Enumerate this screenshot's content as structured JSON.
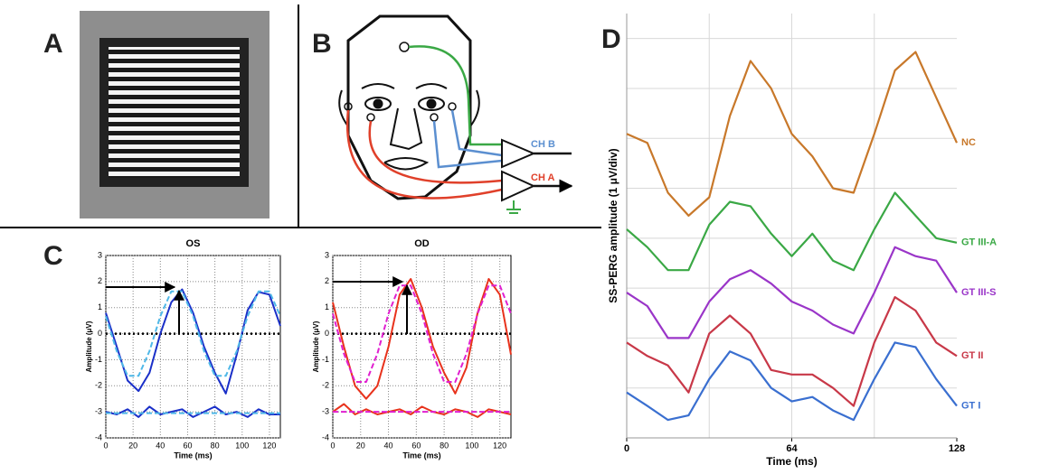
{
  "panel_labels": {
    "a": "A",
    "b": "B",
    "c": "C",
    "d": "D"
  },
  "diagram": {
    "ch_b": "CH B",
    "ch_a": "CH A"
  },
  "chart_data": [
    {
      "type": "line",
      "title": "OS",
      "x_label": "Time (ms)",
      "y_label": "Amplitude (μV)",
      "x": [
        0,
        8,
        16,
        24,
        32,
        40,
        48,
        56,
        64,
        72,
        80,
        88,
        96,
        104,
        112,
        120,
        128
      ],
      "xlim": [
        0,
        128
      ],
      "xticks": [
        0,
        20,
        40,
        60,
        80,
        100,
        120
      ],
      "ylim": [
        -4,
        3
      ],
      "yticks": [
        -4,
        -3,
        -2,
        -1,
        0,
        1,
        2,
        3
      ],
      "grid": true,
      "reference_line": 0,
      "series": [
        {
          "color": "#1a2fc8",
          "dash": false,
          "values": [
            0.8,
            -0.5,
            -1.8,
            -2.2,
            -1.5,
            0,
            1.2,
            1.7,
            0.8,
            -0.5,
            -1.5,
            -2.3,
            -0.8,
            0.9,
            1.6,
            1.5,
            0.3
          ]
        },
        {
          "color": "#4fb8e8",
          "dash": true,
          "values": [
            0.67,
            -0.67,
            -1.62,
            -1.62,
            -0.67,
            0.67,
            1.62,
            1.62,
            0.67,
            -0.67,
            -1.62,
            -1.62,
            -0.67,
            0.67,
            1.62,
            1.62,
            0.67
          ]
        },
        {
          "color": "#1a2fc8",
          "dash": false,
          "values": [
            -3.0,
            -3.1,
            -2.9,
            -3.2,
            -2.8,
            -3.1,
            -3.0,
            -2.9,
            -3.2,
            -3.0,
            -2.8,
            -3.1,
            -3.0,
            -3.2,
            -2.9,
            -3.1,
            -3.1
          ]
        },
        {
          "color": "#4fb8e8",
          "dash": true,
          "values": [
            -3.05,
            -3.05,
            -3.05,
            -3.05,
            -3.05,
            -3.05,
            -3.05,
            -3.05,
            -3.05,
            -3.05,
            -3.05,
            -3.05,
            -3.05,
            -3.05,
            -3.05,
            -3.05,
            -3.05
          ]
        }
      ]
    },
    {
      "type": "line",
      "title": "OD",
      "x_label": "Time (ms)",
      "y_label": "Amplitude (μV)",
      "x": [
        0,
        8,
        16,
        24,
        32,
        40,
        48,
        56,
        64,
        72,
        80,
        88,
        96,
        104,
        112,
        120,
        128
      ],
      "xlim": [
        0,
        128
      ],
      "xticks": [
        0,
        20,
        40,
        60,
        80,
        100,
        120
      ],
      "ylim": [
        -4,
        3
      ],
      "yticks": [
        -4,
        -3,
        -2,
        -1,
        0,
        1,
        2,
        3
      ],
      "grid": true,
      "reference_line": 0,
      "series": [
        {
          "color": "#e8321c",
          "dash": false,
          "values": [
            1.2,
            -0.5,
            -2.0,
            -2.5,
            -2.0,
            -0.5,
            1.5,
            2.1,
            1.0,
            -0.5,
            -1.5,
            -2.3,
            -1.3,
            0.8,
            2.1,
            1.5,
            -0.8
          ]
        },
        {
          "color": "#e020d0",
          "dash": true,
          "values": [
            0.77,
            -0.77,
            -1.85,
            -1.85,
            -0.77,
            0.77,
            1.85,
            1.85,
            0.77,
            -0.77,
            -1.85,
            -1.85,
            -0.77,
            0.77,
            1.85,
            1.85,
            0.77
          ]
        },
        {
          "color": "#e8321c",
          "dash": false,
          "values": [
            -3.0,
            -2.7,
            -3.1,
            -2.9,
            -3.1,
            -3.0,
            -2.9,
            -3.1,
            -2.8,
            -3.0,
            -3.1,
            -2.9,
            -3.0,
            -3.2,
            -2.9,
            -3.0,
            -3.1
          ]
        },
        {
          "color": "#e020d0",
          "dash": true,
          "values": [
            -3.0,
            -3.0,
            -3.0,
            -3.0,
            -3.0,
            -3.0,
            -3.0,
            -3.0,
            -3.0,
            -3.0,
            -3.0,
            -3.0,
            -3.0,
            -3.0,
            -3.0,
            -3.0,
            -3.0
          ]
        }
      ]
    },
    {
      "type": "line",
      "x_label": "Time (ms)",
      "y_label": "SS-PERG amplitude (1 μV/div)",
      "x": [
        0,
        8,
        16,
        24,
        32,
        40,
        48,
        56,
        64,
        72,
        80,
        88,
        96,
        104,
        112,
        120,
        128
      ],
      "xlim": [
        0,
        128
      ],
      "xticks": [
        0,
        64,
        128
      ],
      "ylim": [
        0,
        8.5
      ],
      "x_grid_step": 32,
      "y_grid_step": 1,
      "legend": "line-end",
      "series": [
        {
          "name": "NC",
          "color": "#c8782a",
          "values": [
            6.09,
            5.91,
            4.91,
            4.45,
            4.82,
            6.45,
            7.55,
            7.0,
            6.09,
            5.64,
            5.0,
            4.91,
            6.09,
            7.36,
            7.73,
            6.82,
            5.91
          ]
        },
        {
          "name": "GT III-A",
          "color": "#3aa845",
          "values": [
            4.18,
            3.82,
            3.36,
            3.36,
            4.27,
            4.73,
            4.64,
            4.09,
            3.64,
            4.09,
            3.55,
            3.36,
            4.18,
            4.91,
            4.45,
            4.0,
            3.91
          ]
        },
        {
          "name": "GT III-S",
          "color": "#9a35c8",
          "values": [
            2.91,
            2.64,
            2.0,
            2.0,
            2.73,
            3.18,
            3.36,
            3.09,
            2.73,
            2.55,
            2.27,
            2.09,
            2.91,
            3.82,
            3.64,
            3.55,
            2.91
          ]
        },
        {
          "name": "GT II",
          "color": "#c83848",
          "values": [
            1.91,
            1.64,
            1.45,
            0.91,
            2.09,
            2.45,
            2.09,
            1.36,
            1.27,
            1.27,
            1.0,
            0.64,
            1.91,
            2.82,
            2.55,
            1.91,
            1.64
          ]
        },
        {
          "name": "GT I",
          "color": "#3a6fd0",
          "values": [
            0.91,
            0.64,
            0.36,
            0.45,
            1.18,
            1.73,
            1.55,
            1.0,
            0.73,
            0.82,
            0.55,
            0.36,
            1.18,
            1.91,
            1.82,
            1.18,
            0.64
          ]
        }
      ]
    }
  ]
}
